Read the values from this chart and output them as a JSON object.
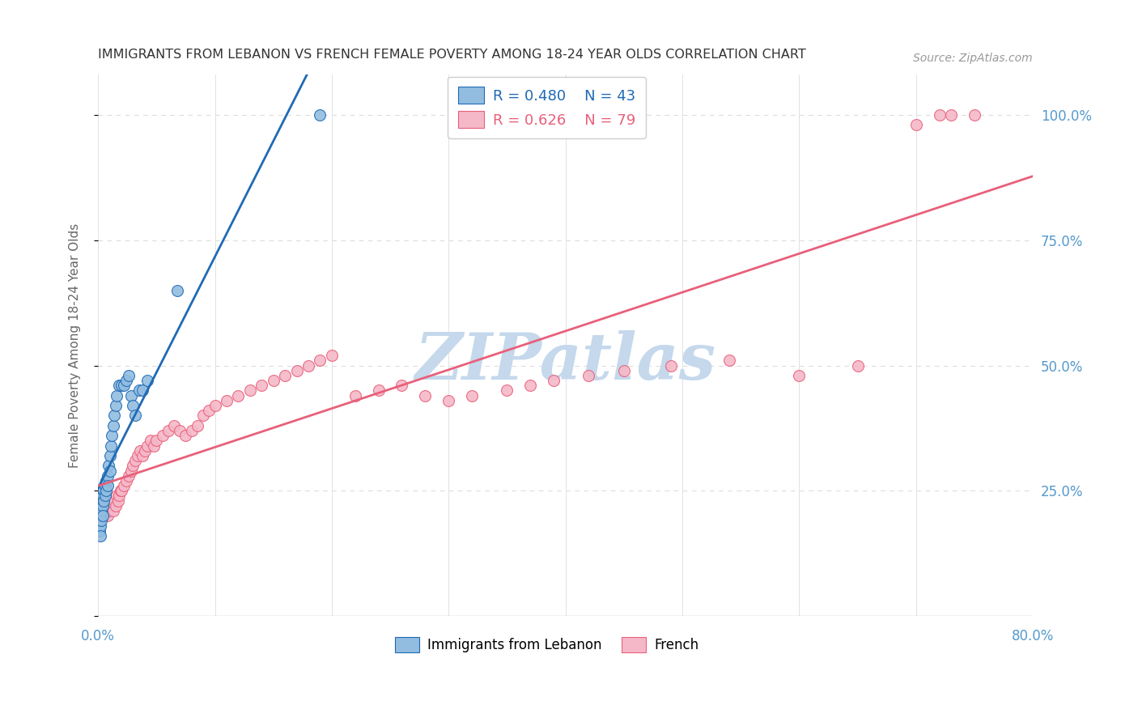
{
  "title": "IMMIGRANTS FROM LEBANON VS FRENCH FEMALE POVERTY AMONG 18-24 YEAR OLDS CORRELATION CHART",
  "source": "Source: ZipAtlas.com",
  "ylabel": "Female Poverty Among 18-24 Year Olds",
  "xlim": [
    0.0,
    0.8
  ],
  "ylim": [
    0.0,
    1.08
  ],
  "lebanon_color": "#92bde0",
  "french_color": "#f5b8c8",
  "lebanon_line_color": "#1f6ab5",
  "french_line_color": "#e8607a",
  "legend_R_lebanon": "0.480",
  "legend_N_lebanon": "43",
  "legend_R_french": "0.626",
  "legend_N_french": "79",
  "watermark": "ZIPatlas",
  "watermark_color": "#c5d8ec",
  "lebanon_scatter_x": [
    0.001,
    0.001,
    0.001,
    0.002,
    0.002,
    0.002,
    0.002,
    0.003,
    0.003,
    0.003,
    0.004,
    0.004,
    0.004,
    0.005,
    0.005,
    0.006,
    0.006,
    0.007,
    0.007,
    0.008,
    0.008,
    0.009,
    0.01,
    0.01,
    0.011,
    0.012,
    0.013,
    0.014,
    0.015,
    0.016,
    0.018,
    0.02,
    0.022,
    0.024,
    0.026,
    0.028,
    0.03,
    0.032,
    0.035,
    0.038,
    0.042,
    0.068,
    0.19
  ],
  "lebanon_scatter_y": [
    0.21,
    0.19,
    0.17,
    0.22,
    0.2,
    0.18,
    0.16,
    0.23,
    0.21,
    0.19,
    0.24,
    0.22,
    0.2,
    0.25,
    0.23,
    0.26,
    0.24,
    0.27,
    0.25,
    0.28,
    0.26,
    0.3,
    0.32,
    0.29,
    0.34,
    0.36,
    0.38,
    0.4,
    0.42,
    0.44,
    0.46,
    0.46,
    0.46,
    0.47,
    0.48,
    0.44,
    0.42,
    0.4,
    0.45,
    0.45,
    0.47,
    0.65,
    1.0
  ],
  "french_scatter_x": [
    0.001,
    0.002,
    0.002,
    0.003,
    0.003,
    0.004,
    0.004,
    0.005,
    0.005,
    0.006,
    0.006,
    0.007,
    0.008,
    0.008,
    0.009,
    0.01,
    0.011,
    0.012,
    0.013,
    0.014,
    0.015,
    0.016,
    0.017,
    0.018,
    0.019,
    0.02,
    0.022,
    0.024,
    0.026,
    0.028,
    0.03,
    0.032,
    0.034,
    0.036,
    0.038,
    0.04,
    0.042,
    0.045,
    0.048,
    0.05,
    0.055,
    0.06,
    0.065,
    0.07,
    0.075,
    0.08,
    0.085,
    0.09,
    0.095,
    0.1,
    0.11,
    0.12,
    0.13,
    0.14,
    0.15,
    0.16,
    0.17,
    0.18,
    0.19,
    0.2,
    0.22,
    0.24,
    0.26,
    0.28,
    0.3,
    0.32,
    0.35,
    0.37,
    0.39,
    0.42,
    0.45,
    0.49,
    0.54,
    0.6,
    0.65,
    0.7,
    0.72,
    0.73,
    0.75
  ],
  "french_scatter_y": [
    0.2,
    0.22,
    0.2,
    0.23,
    0.21,
    0.22,
    0.2,
    0.21,
    0.23,
    0.22,
    0.2,
    0.21,
    0.22,
    0.2,
    0.21,
    0.22,
    0.23,
    0.22,
    0.21,
    0.23,
    0.22,
    0.24,
    0.23,
    0.24,
    0.25,
    0.25,
    0.26,
    0.27,
    0.28,
    0.29,
    0.3,
    0.31,
    0.32,
    0.33,
    0.32,
    0.33,
    0.34,
    0.35,
    0.34,
    0.35,
    0.36,
    0.37,
    0.38,
    0.37,
    0.36,
    0.37,
    0.38,
    0.4,
    0.41,
    0.42,
    0.43,
    0.44,
    0.45,
    0.46,
    0.47,
    0.48,
    0.49,
    0.5,
    0.51,
    0.52,
    0.44,
    0.45,
    0.46,
    0.44,
    0.43,
    0.44,
    0.45,
    0.46,
    0.47,
    0.48,
    0.49,
    0.5,
    0.51,
    0.48,
    0.5,
    0.98,
    1.0,
    1.0,
    1.0
  ],
  "background_color": "#ffffff",
  "grid_color": "#dddddd",
  "title_color": "#333333",
  "axis_label_color": "#666666",
  "tick_color": "#5599cc"
}
